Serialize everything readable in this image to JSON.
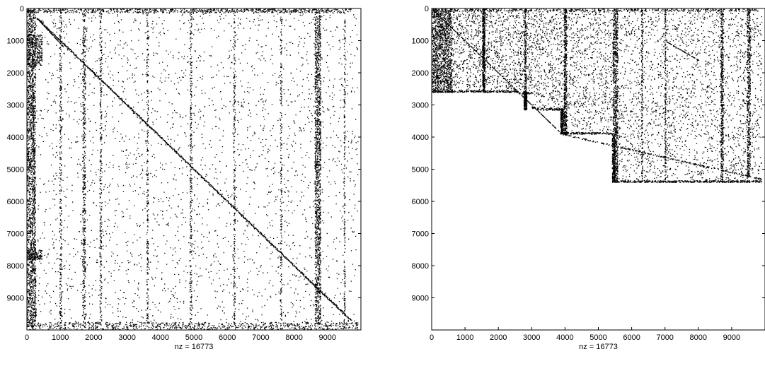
{
  "chart_data": [
    {
      "type": "scatter",
      "title": "",
      "xlabel": "nz = 16773",
      "ylabel": "",
      "xlim": [
        0,
        10000
      ],
      "ylim": [
        10000,
        0
      ],
      "x_ticks": [
        "0",
        "1000",
        "2000",
        "3000",
        "4000",
        "5000",
        "6000",
        "7000",
        "8000",
        "9000"
      ],
      "y_ticks": [
        "0",
        "1000",
        "2000",
        "3000",
        "4000",
        "5000",
        "6000",
        "7000",
        "8000",
        "9000"
      ],
      "grid": false,
      "marker_color": "#000000",
      "pattern": "sparsity-original",
      "nnz": 16773
    },
    {
      "type": "scatter",
      "title": "",
      "xlabel": "nz = 16773",
      "ylabel": "",
      "xlim": [
        0,
        10000
      ],
      "ylim": [
        10000,
        0
      ],
      "x_ticks": [
        "0",
        "1000",
        "2000",
        "3000",
        "4000",
        "5000",
        "6000",
        "7000",
        "8000",
        "9000"
      ],
      "y_ticks": [
        "0",
        "1000",
        "2000",
        "3000",
        "4000",
        "5000",
        "6000",
        "7000",
        "8000",
        "9000"
      ],
      "grid": false,
      "marker_color": "#000000",
      "pattern": "sparsity-reordered",
      "nnz": 16773
    }
  ]
}
